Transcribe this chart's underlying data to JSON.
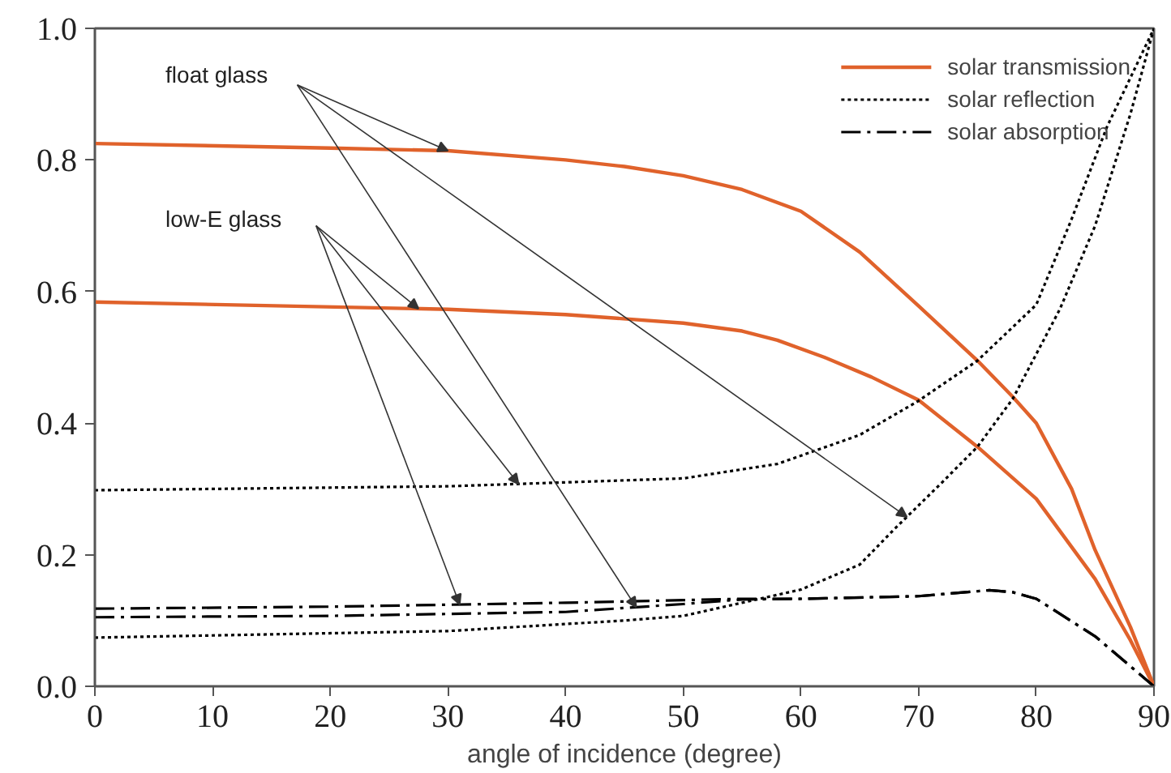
{
  "chart_data": {
    "type": "line",
    "xlabel": "angle of incidence (degree)",
    "xlim": [
      0,
      90
    ],
    "xticks": [
      0,
      10,
      20,
      30,
      40,
      50,
      60,
      70,
      80,
      90
    ],
    "ylim": [
      0,
      1
    ],
    "yticks": [
      {
        "value": 0,
        "label": "0.0"
      },
      {
        "value": 0.2,
        "label": "0.2"
      },
      {
        "value": 0.4,
        "label": "0.4"
      },
      {
        "value": 0.6,
        "label": "0.6"
      },
      {
        "value": 0.8,
        "label": "0.8"
      },
      {
        "value": 1,
        "label": "1.0"
      }
    ],
    "grid": false,
    "legend": "top right",
    "marker": "none",
    "annotations": [
      "float glass",
      "low-E glass"
    ],
    "series": [
      {
        "name": "solar transmission",
        "color": "#e0622b",
        "line_style": "solid",
        "x": [
          0,
          20,
          30,
          40,
          45,
          50,
          55,
          60,
          65,
          70,
          75,
          78,
          80,
          83,
          85,
          88,
          90
        ],
        "values": [
          0.825,
          0.818,
          0.814,
          0.8,
          0.79,
          0.776,
          0.755,
          0.722,
          0.66,
          0.578,
          0.495,
          0.44,
          0.4,
          0.3,
          0.207,
          0.09,
          0
        ]
      },
      {
        "color": "#e0622b",
        "line_style": "solid",
        "x": [
          0,
          30,
          40,
          50,
          55,
          58,
          62,
          66,
          70,
          75,
          80,
          85,
          88,
          90
        ],
        "values": [
          0.584,
          0.573,
          0.565,
          0.552,
          0.54,
          0.526,
          0.5,
          0.47,
          0.435,
          0.364,
          0.285,
          0.163,
          0.07,
          0
        ]
      },
      {
        "name": "solar reflection",
        "color": "#000000",
        "line_style": "dotted",
        "x": [
          0,
          30,
          45,
          50,
          60,
          65,
          68,
          72,
          75,
          78,
          82,
          85,
          88,
          90
        ],
        "values": [
          0.074,
          0.084,
          0.1,
          0.107,
          0.147,
          0.185,
          0.24,
          0.31,
          0.364,
          0.437,
          0.573,
          0.7,
          0.87,
          1.0
        ]
      },
      {
        "color": "#000000",
        "line_style": "dotted",
        "x": [
          0,
          30,
          40,
          50,
          58,
          65,
          70,
          75,
          80,
          83,
          86,
          90
        ],
        "values": [
          0.298,
          0.304,
          0.31,
          0.316,
          0.338,
          0.382,
          0.434,
          0.495,
          0.58,
          0.71,
          0.85,
          1.0
        ]
      },
      {
        "name": "solar absorption",
        "color": "#000000",
        "line_style": "dashdot",
        "x": [
          0,
          20,
          40,
          50,
          55,
          60,
          70,
          76,
          78,
          80,
          85,
          90
        ],
        "values": [
          0.105,
          0.107,
          0.113,
          0.125,
          0.132,
          0.133,
          0.137,
          0.146,
          0.143,
          0.133,
          0.076,
          0
        ]
      },
      {
        "color": "#000000",
        "line_style": "dashdot",
        "x": [
          0,
          20,
          40,
          50,
          55,
          60,
          70,
          76,
          78,
          80,
          85,
          90
        ],
        "values": [
          0.118,
          0.121,
          0.127,
          0.131,
          0.133,
          0.133,
          0.137,
          0.146,
          0.143,
          0.133,
          0.076,
          0
        ]
      }
    ]
  }
}
